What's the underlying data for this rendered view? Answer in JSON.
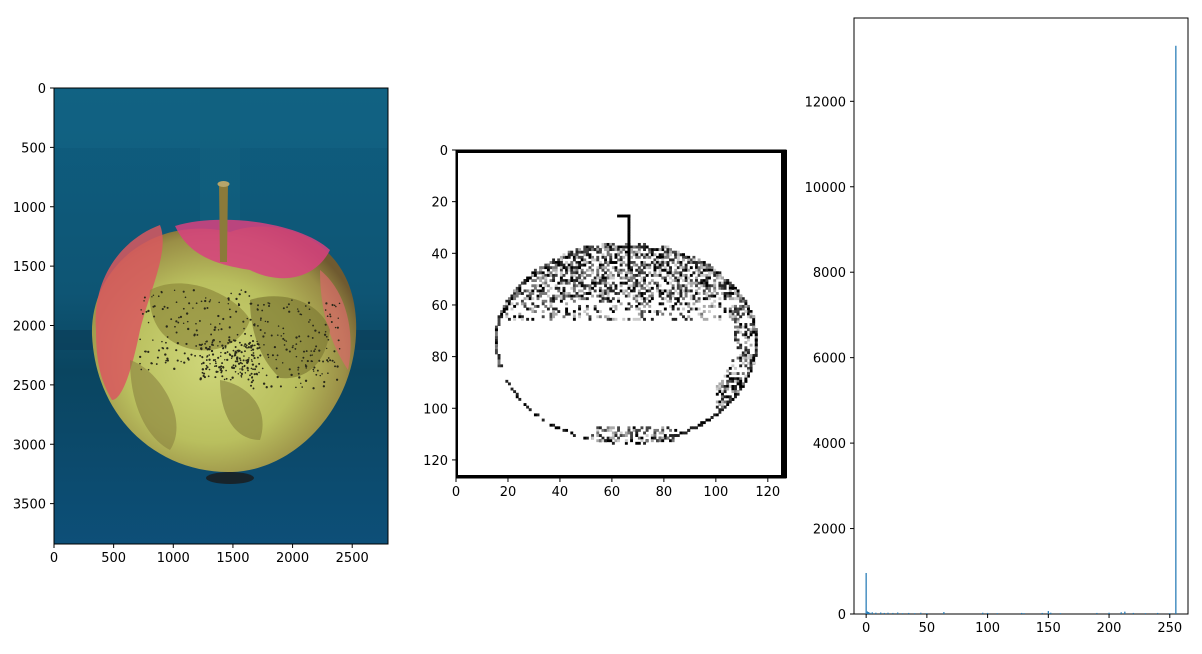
{
  "chart_data": [
    {
      "type": "image",
      "panel": "photo",
      "xlim": [
        0,
        2800
      ],
      "ylim": [
        3840,
        0
      ],
      "x_ticks": [
        0,
        500,
        1000,
        1500,
        2000,
        2500
      ],
      "y_ticks": [
        0,
        500,
        1000,
        1500,
        2000,
        2500,
        3000,
        3500
      ],
      "x_tick_labels": [
        "0",
        "500",
        "1000",
        "1500",
        "2000",
        "2500"
      ],
      "y_tick_labels": [
        "0",
        "500",
        "1000",
        "1500",
        "2000",
        "2500",
        "3000",
        "3500"
      ],
      "colors": {
        "background": "#13587a",
        "apple_yellow": "#c8cf6e",
        "apple_red": "#d8545c",
        "apple_pink": "#d8407e",
        "apple_olive": "#8c8a3e",
        "stem": "#8a7a3a"
      }
    },
    {
      "type": "heatmap",
      "panel": "grayscale-edges",
      "colormap": "gray",
      "xlim": [
        0,
        127
      ],
      "ylim": [
        127,
        0
      ],
      "x_ticks": [
        0,
        20,
        40,
        60,
        80,
        100,
        120
      ],
      "y_ticks": [
        0,
        20,
        40,
        60,
        80,
        100,
        120
      ],
      "x_tick_labels": [
        "0",
        "20",
        "40",
        "60",
        "80",
        "100",
        "120"
      ],
      "y_tick_labels": [
        "0",
        "20",
        "40",
        "60",
        "80",
        "100",
        "120"
      ]
    },
    {
      "type": "bar",
      "panel": "histogram",
      "color": "#1f77b4",
      "xlim": [
        -10,
        265
      ],
      "ylim": [
        0,
        13950
      ],
      "x_ticks": [
        0,
        50,
        100,
        150,
        200,
        250
      ],
      "y_ticks": [
        0,
        2000,
        4000,
        6000,
        8000,
        10000,
        12000
      ],
      "x_tick_labels": [
        "0",
        "50",
        "100",
        "150",
        "200",
        "250"
      ],
      "y_tick_labels": [
        "0",
        "2000",
        "4000",
        "6000",
        "8000",
        "10000",
        "12000"
      ],
      "bins": [
        {
          "x": 0,
          "count": 960
        },
        {
          "x": 1,
          "count": 60
        },
        {
          "x": 2,
          "count": 45
        },
        {
          "x": 3,
          "count": 30
        },
        {
          "x": 5,
          "count": 40
        },
        {
          "x": 8,
          "count": 30
        },
        {
          "x": 12,
          "count": 35
        },
        {
          "x": 15,
          "count": 25
        },
        {
          "x": 18,
          "count": 30
        },
        {
          "x": 22,
          "count": 25
        },
        {
          "x": 26,
          "count": 35
        },
        {
          "x": 30,
          "count": 20
        },
        {
          "x": 35,
          "count": 25
        },
        {
          "x": 40,
          "count": 20
        },
        {
          "x": 45,
          "count": 30
        },
        {
          "x": 50,
          "count": 20
        },
        {
          "x": 64,
          "count": 45
        },
        {
          "x": 96,
          "count": 30
        },
        {
          "x": 100,
          "count": 25
        },
        {
          "x": 108,
          "count": 20
        },
        {
          "x": 128,
          "count": 25
        },
        {
          "x": 130,
          "count": 20
        },
        {
          "x": 145,
          "count": 25
        },
        {
          "x": 150,
          "count": 70
        },
        {
          "x": 152,
          "count": 30
        },
        {
          "x": 160,
          "count": 20
        },
        {
          "x": 190,
          "count": 25
        },
        {
          "x": 200,
          "count": 30
        },
        {
          "x": 210,
          "count": 40
        },
        {
          "x": 213,
          "count": 55
        },
        {
          "x": 220,
          "count": 25
        },
        {
          "x": 230,
          "count": 20
        },
        {
          "x": 240,
          "count": 25
        },
        {
          "x": 250,
          "count": 20
        },
        {
          "x": 255,
          "count": 13300
        }
      ]
    }
  ]
}
